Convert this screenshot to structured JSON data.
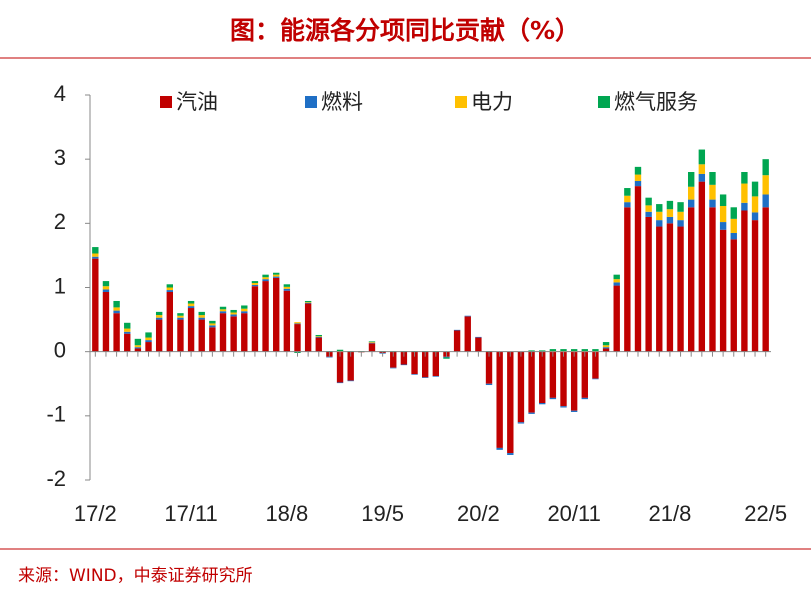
{
  "chart_data": {
    "type": "stacked_bar",
    "title": "图：能源各分项同比贡献（%）",
    "source": "来源：WIND，中泰证券研究所",
    "categories": [
      "17/2",
      null,
      null,
      null,
      null,
      null,
      null,
      null,
      null,
      "17/11",
      null,
      null,
      null,
      null,
      null,
      null,
      null,
      null,
      "18/8",
      null,
      null,
      null,
      null,
      null,
      null,
      null,
      null,
      "19/5",
      null,
      null,
      null,
      null,
      null,
      null,
      null,
      null,
      "20/2",
      null,
      null,
      null,
      null,
      null,
      null,
      null,
      null,
      "20/11",
      null,
      null,
      null,
      null,
      null,
      null,
      null,
      null,
      "21/8",
      null,
      null,
      null,
      null,
      null,
      null,
      null,
      null,
      "22/5"
    ],
    "series": [
      {
        "name": "汽油",
        "color": "#c00000",
        "values": [
          1.45,
          0.93,
          0.6,
          0.28,
          0.05,
          0.15,
          0.5,
          0.93,
          0.5,
          0.68,
          0.5,
          0.38,
          0.6,
          0.55,
          0.6,
          1.02,
          1.1,
          1.15,
          0.95,
          0.43,
          0.75,
          0.22,
          -0.08,
          -0.48,
          -0.45,
          -0.01,
          0.13,
          -0.02,
          -0.25,
          -0.2,
          -0.35,
          -0.4,
          -0.38,
          -0.08,
          0.33,
          0.55,
          0.22,
          -0.5,
          -1.5,
          -1.58,
          -1.1,
          -0.95,
          -0.8,
          -0.72,
          -0.85,
          -0.92,
          -0.72,
          -0.42,
          0.05,
          1.03,
          2.25,
          2.58,
          2.1,
          1.95,
          2.0,
          1.95,
          2.25,
          2.65,
          2.25,
          1.9,
          1.75,
          2.2,
          2.05,
          2.25
        ]
      },
      {
        "name": "燃料",
        "color": "#1f6fc5",
        "values": [
          0.03,
          0.04,
          0.04,
          0.03,
          0.02,
          0.03,
          0.03,
          0.03,
          0.03,
          0.03,
          0.03,
          0.03,
          0.03,
          0.03,
          0.03,
          0.02,
          0.03,
          0.02,
          0.03,
          0.01,
          0.01,
          0.01,
          -0.01,
          -0.01,
          -0.01,
          0.0,
          0.01,
          -0.01,
          -0.01,
          -0.01,
          -0.01,
          -0.01,
          -0.01,
          -0.01,
          0.01,
          0.01,
          0.01,
          -0.02,
          -0.03,
          -0.03,
          -0.02,
          -0.02,
          -0.02,
          -0.02,
          -0.02,
          -0.02,
          -0.02,
          -0.01,
          0.02,
          0.05,
          0.08,
          0.08,
          0.08,
          0.1,
          0.1,
          0.1,
          0.12,
          0.12,
          0.12,
          0.12,
          0.1,
          0.12,
          0.12,
          0.2
        ]
      },
      {
        "name": "电力",
        "color": "#ffc000",
        "values": [
          0.05,
          0.05,
          0.05,
          0.05,
          0.03,
          0.04,
          0.04,
          0.04,
          0.03,
          0.04,
          0.04,
          0.03,
          0.03,
          0.03,
          0.04,
          0.03,
          0.03,
          0.03,
          0.03,
          0.02,
          0.01,
          0.01,
          0.0,
          0.01,
          0.0,
          0.0,
          0.01,
          0.0,
          0.0,
          0.0,
          0.0,
          0.0,
          0.0,
          0.0,
          0.0,
          0.0,
          0.0,
          0.0,
          0.0,
          0.0,
          0.0,
          0.0,
          0.0,
          0.01,
          0.01,
          0.01,
          0.01,
          0.01,
          0.03,
          0.05,
          0.1,
          0.1,
          0.1,
          0.13,
          0.12,
          0.13,
          0.2,
          0.15,
          0.23,
          0.25,
          0.22,
          0.3,
          0.25,
          0.3
        ]
      },
      {
        "name": "燃气服务",
        "color": "#00a651",
        "values": [
          0.1,
          0.08,
          0.1,
          0.09,
          0.1,
          0.08,
          0.05,
          0.05,
          0.04,
          0.04,
          0.05,
          0.04,
          0.04,
          0.04,
          0.05,
          0.03,
          0.04,
          0.03,
          0.04,
          -0.02,
          0.02,
          0.02,
          0.01,
          0.02,
          0.01,
          0.01,
          0.01,
          0.01,
          0.01,
          0.01,
          0.01,
          0.01,
          0.01,
          -0.02,
          0.0,
          0.0,
          0.0,
          0.01,
          0.0,
          0.0,
          0.0,
          0.02,
          0.02,
          0.03,
          0.03,
          0.03,
          0.03,
          0.03,
          0.05,
          0.07,
          0.12,
          0.12,
          0.12,
          0.12,
          0.13,
          0.15,
          0.23,
          0.23,
          0.2,
          0.18,
          0.18,
          0.18,
          0.23,
          0.25
        ]
      }
    ],
    "ylim": [
      -2,
      4
    ],
    "yticks": [
      -2,
      -1,
      0,
      1,
      2,
      3,
      4
    ],
    "legend": "top"
  }
}
